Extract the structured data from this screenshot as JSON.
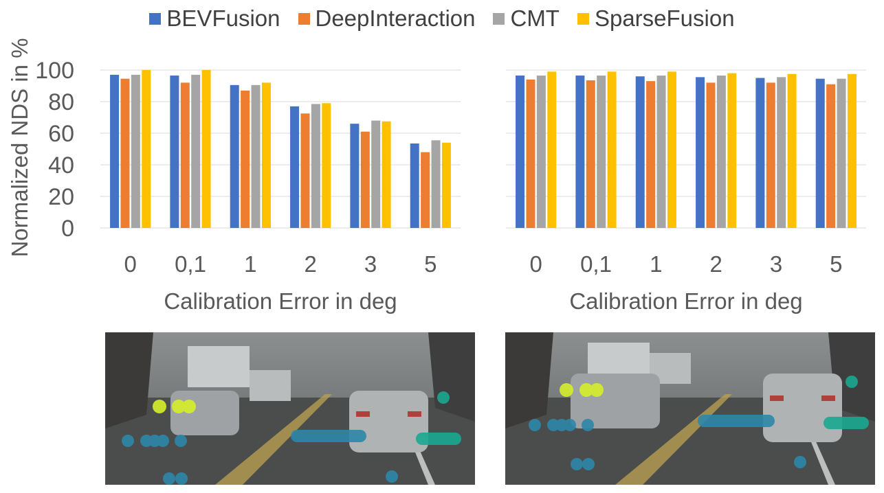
{
  "chart_data": [
    {
      "type": "bar",
      "title": "",
      "categories": [
        "0",
        "0,1",
        "1",
        "2",
        "3",
        "5"
      ],
      "series": [
        {
          "name": "BEVFusion",
          "values": [
            97,
            96.5,
            90.5,
            77,
            66,
            53.5
          ]
        },
        {
          "name": "DeepInteraction",
          "values": [
            94.5,
            92,
            87,
            72.5,
            61,
            48
          ]
        },
        {
          "name": "CMT",
          "values": [
            97,
            97,
            90.5,
            78.5,
            68,
            55.5
          ]
        },
        {
          "name": "SparseFusion",
          "values": [
            100,
            100,
            92,
            79,
            67.5,
            54
          ]
        }
      ],
      "xlabel": "Calibration Error in deg",
      "ylabel": "Normalized NDS in %",
      "yticks": [
        "0",
        "20",
        "40",
        "60",
        "80",
        "100"
      ],
      "ylim": [
        0,
        100
      ],
      "grid": true,
      "legend": "top-center"
    },
    {
      "type": "bar",
      "title": "",
      "categories": [
        "0",
        "0,1",
        "1",
        "2",
        "3",
        "5"
      ],
      "series": [
        {
          "name": "BEVFusion",
          "values": [
            96.5,
            96.5,
            96,
            95.5,
            95,
            94.5
          ]
        },
        {
          "name": "DeepInteraction",
          "values": [
            94,
            93.5,
            93,
            92,
            92,
            91
          ]
        },
        {
          "name": "CMT",
          "values": [
            96.5,
            96.5,
            96.5,
            96.5,
            95.5,
            94.5
          ]
        },
        {
          "name": "SparseFusion",
          "values": [
            99,
            99,
            99,
            98,
            97.5,
            97.5
          ]
        }
      ],
      "xlabel": "Calibration Error in deg",
      "ylabel": "",
      "yticks": [],
      "ylim": [
        0,
        100
      ],
      "grid": true,
      "legend": "top-center"
    }
  ],
  "legend": {
    "items": [
      {
        "name": "BEVFusion",
        "color": "#4472C4"
      },
      {
        "name": "DeepInteraction",
        "color": "#ED7D31"
      },
      {
        "name": "CMT",
        "color": "#A5A5A5"
      },
      {
        "name": "SparseFusion",
        "color": "#FFC000"
      }
    ]
  },
  "colors": {
    "BEVFusion": "#4472C4",
    "DeepInteraction": "#ED7D31",
    "CMT": "#A5A5A5",
    "SparseFusion": "#FFC000",
    "grid": "#D9D9D9",
    "road": "#4a4d4c",
    "point_yellow": "#d6ef2a",
    "point_blue": "#2e86a8",
    "point_teal": "#1aa890"
  }
}
